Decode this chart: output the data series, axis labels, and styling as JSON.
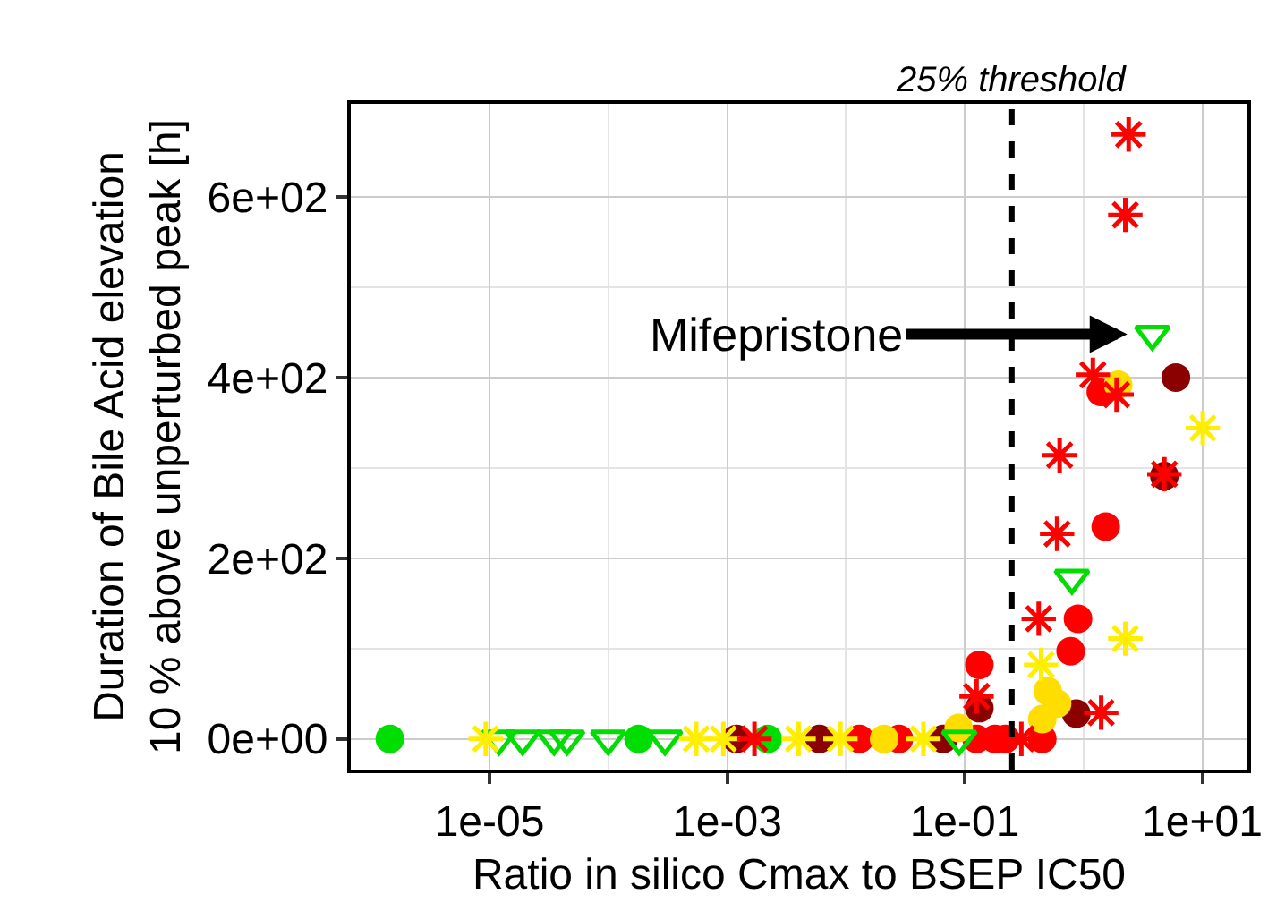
{
  "chart_data": {
    "type": "scatter",
    "xlabel": "Ratio in silico Cmax to BSEP IC50",
    "ylabel": "Duration of Bile Acid elevation\n10 % above unperturbed peak [h]",
    "log": "x",
    "grid": true,
    "xlim": [
      6.8e-07,
      24
    ],
    "ylim": [
      -34,
      703
    ],
    "xticks": [
      {
        "value": 1e-05,
        "label": "1e-05"
      },
      {
        "value": 0.001,
        "label": "1e-03"
      },
      {
        "value": 0.1,
        "label": "1e-01"
      },
      {
        "value": 10,
        "label": "1e+01"
      }
    ],
    "yticks": [
      {
        "value": 0,
        "label": "0e+00"
      },
      {
        "value": 200,
        "label": "2e+02"
      },
      {
        "value": 400,
        "label": "4e+02"
      },
      {
        "value": 600,
        "label": "6e+02"
      }
    ],
    "ref_lines": [
      {
        "axis": "x",
        "value": 0.25,
        "label": "25% threshold",
        "color": "#000000",
        "line_style": "dashed"
      }
    ],
    "annotations": [
      {
        "text": "Mifepristone",
        "x": 3.8,
        "y": 448
      }
    ],
    "series": [
      {
        "color": "#00dd00",
        "marker": "circle",
        "x": [
          1.45e-06,
          0.00018,
          0.0022
        ],
        "values": [
          0,
          0,
          0
        ]
      },
      {
        "color": "#00dd00",
        "marker": "triangle",
        "x": [
          1.2e-05,
          1.9e-05,
          3.5e-05,
          4.5e-05,
          0.0001,
          0.0003,
          0.09,
          0.8,
          3.8
        ],
        "values": [
          0,
          0,
          0,
          0,
          0,
          0,
          0,
          178,
          448
        ]
      },
      {
        "color": "#ffee00",
        "marker": "cross",
        "x": [
          9.3e-06,
          0.00055,
          0.00093,
          0.004,
          0.009,
          0.045,
          0.44,
          2.25,
          10.1
        ],
        "values": [
          0,
          0,
          0,
          0,
          0,
          0,
          82,
          111,
          344
        ]
      },
      {
        "color": "#ff0000",
        "marker": "cross",
        "x": [
          0.0017,
          0.3,
          0.126,
          0.42,
          0.6,
          0.63,
          1.2,
          1.41,
          1.9,
          2.25,
          2.4,
          4.8
        ],
        "values": [
          0,
          0,
          47,
          133,
          227,
          314,
          403,
          29,
          381,
          580,
          669,
          293
        ]
      },
      {
        "color": "#ff0000",
        "marker": "circle",
        "x": [
          0.013,
          0.028,
          0.126,
          0.18,
          0.22,
          0.45,
          0.133,
          0.78,
          0.9,
          1.4,
          1.54
        ],
        "values": [
          0,
          0,
          0,
          0,
          0,
          0,
          82,
          97,
          133,
          384,
          235
        ]
      },
      {
        "color": "#8b0000",
        "marker": "circle",
        "x": [
          0.0012,
          0.006,
          0.066,
          0.133,
          0.87,
          4.8,
          6.0
        ],
        "values": [
          0,
          0,
          0,
          34,
          28,
          291,
          400
        ]
      },
      {
        "color": "#ffdd00",
        "marker": "circle",
        "x": [
          0.021,
          0.089,
          0.45,
          0.5,
          0.6,
          1.96
        ],
        "values": [
          0,
          12,
          22,
          53,
          39,
          392
        ]
      }
    ]
  }
}
